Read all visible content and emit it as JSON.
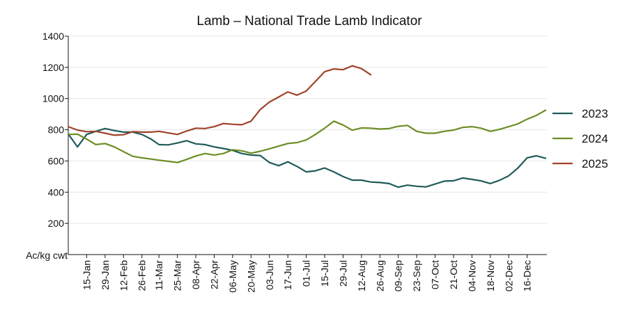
{
  "chart_data": {
    "type": "line",
    "title": "Lamb – National Trade Lamb Indicator",
    "ylabel": "Ac/kg cwt",
    "xlabel": "",
    "ylim": [
      0,
      1400
    ],
    "yticks": [
      200,
      400,
      600,
      800,
      1000,
      1200,
      1400
    ],
    "grid": true,
    "legend": "right",
    "x_tick_labels": [
      "15-Jan",
      "29-Jan",
      "12-Feb",
      "26-Feb",
      "11-Mar",
      "25-Mar",
      "08-Apr",
      "22-Apr",
      "06-May",
      "20-May",
      "03-Jun",
      "17-Jun",
      "01-Jul",
      "15-Jul",
      "29-Jul",
      "12-Aug",
      "26-Aug",
      "09-Sep",
      "23-Sep",
      "07-Oct",
      "21-Oct",
      "04-Nov",
      "18-Nov",
      "02-Dec",
      "16-Dec"
    ],
    "x_start": "01-Jan",
    "x_end": "31-Dec",
    "series": [
      {
        "name": "2023",
        "color": "#1f5a5a",
        "x": [
          "01-Jan",
          "08-Jan",
          "15-Jan",
          "22-Jan",
          "29-Jan",
          "05-Feb",
          "12-Feb",
          "19-Feb",
          "26-Feb",
          "05-Mar",
          "11-Mar",
          "18-Mar",
          "25-Mar",
          "01-Apr",
          "08-Apr",
          "15-Apr",
          "22-Apr",
          "29-Apr",
          "06-May",
          "13-May",
          "20-May",
          "27-May",
          "03-Jun",
          "10-Jun",
          "17-Jun",
          "24-Jun",
          "01-Jul",
          "08-Jul",
          "15-Jul",
          "22-Jul",
          "29-Jul",
          "05-Aug",
          "12-Aug",
          "19-Aug",
          "26-Aug",
          "02-Sep",
          "09-Sep",
          "16-Sep",
          "23-Sep",
          "30-Sep",
          "07-Oct",
          "14-Oct",
          "21-Oct",
          "28-Oct",
          "04-Nov",
          "11-Nov",
          "18-Nov",
          "25-Nov",
          "02-Dec",
          "09-Dec",
          "16-Dec",
          "23-Dec",
          "30-Dec"
        ],
        "values": [
          773,
          690,
          770,
          790,
          808,
          795,
          785,
          785,
          770,
          740,
          705,
          703,
          715,
          730,
          710,
          705,
          690,
          680,
          668,
          648,
          638,
          635,
          590,
          570,
          595,
          565,
          530,
          537,
          555,
          530,
          500,
          477,
          477,
          465,
          462,
          455,
          432,
          445,
          438,
          434,
          452,
          471,
          473,
          491,
          482,
          472,
          455,
          476,
          505,
          555,
          620,
          633,
          617
        ]
      },
      {
        "name": "2024",
        "color": "#6b8e23",
        "x": [
          "01-Jan",
          "08-Jan",
          "15-Jan",
          "22-Jan",
          "29-Jan",
          "05-Feb",
          "12-Feb",
          "19-Feb",
          "26-Feb",
          "05-Mar",
          "11-Mar",
          "18-Mar",
          "25-Mar",
          "01-Apr",
          "08-Apr",
          "15-Apr",
          "22-Apr",
          "29-Apr",
          "06-May",
          "13-May",
          "20-May",
          "27-May",
          "03-Jun",
          "10-Jun",
          "17-Jun",
          "24-Jun",
          "01-Jul",
          "08-Jul",
          "15-Jul",
          "22-Jul",
          "29-Jul",
          "05-Aug",
          "12-Aug",
          "19-Aug",
          "26-Aug",
          "02-Sep",
          "09-Sep",
          "16-Sep",
          "23-Sep",
          "30-Sep",
          "07-Oct",
          "14-Oct",
          "21-Oct",
          "28-Oct",
          "04-Nov",
          "11-Nov",
          "18-Nov",
          "25-Nov",
          "02-Dec",
          "09-Dec",
          "16-Dec",
          "23-Dec",
          "30-Dec"
        ],
        "values": [
          770,
          772,
          740,
          705,
          712,
          690,
          660,
          630,
          620,
          612,
          605,
          598,
          590,
          610,
          632,
          648,
          638,
          648,
          672,
          665,
          650,
          662,
          678,
          695,
          712,
          718,
          735,
          770,
          810,
          855,
          830,
          797,
          812,
          810,
          805,
          808,
          822,
          828,
          790,
          778,
          778,
          790,
          798,
          815,
          820,
          810,
          790,
          803,
          820,
          838,
          868,
          892,
          925
        ]
      },
      {
        "name": "2025",
        "color": "#a0432a",
        "x": [
          "01-Jan",
          "08-Jan",
          "15-Jan",
          "22-Jan",
          "29-Jan",
          "05-Feb",
          "12-Feb",
          "19-Feb",
          "26-Feb",
          "05-Mar",
          "11-Mar",
          "18-Mar",
          "25-Mar",
          "01-Apr",
          "08-Apr",
          "15-Apr",
          "22-Apr",
          "29-Apr",
          "06-May",
          "13-May",
          "20-May",
          "27-May",
          "03-Jun",
          "10-Jun",
          "17-Jun",
          "24-Jun",
          "01-Jul",
          "08-Jul",
          "15-Jul",
          "22-Jul",
          "29-Jul",
          "05-Aug",
          "12-Aug",
          "19-Aug"
        ],
        "values": [
          820,
          798,
          788,
          790,
          778,
          765,
          768,
          788,
          785,
          785,
          790,
          780,
          770,
          792,
          810,
          808,
          820,
          840,
          835,
          832,
          855,
          930,
          978,
          1010,
          1043,
          1022,
          1048,
          1110,
          1172,
          1190,
          1185,
          1210,
          1192,
          1153
        ]
      }
    ]
  }
}
